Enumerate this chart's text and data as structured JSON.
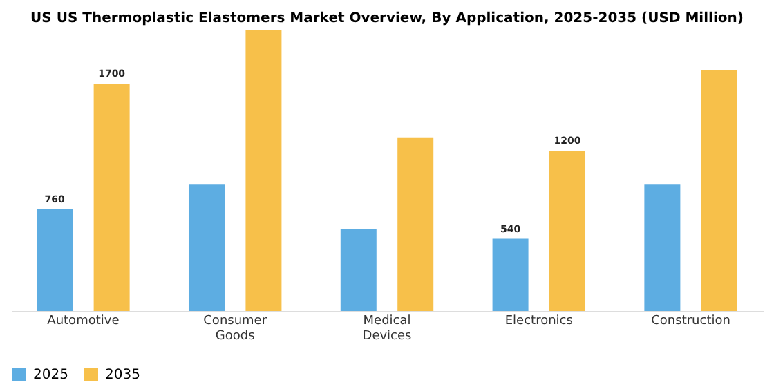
{
  "chart_data": {
    "type": "bar",
    "title": "US US Thermoplastic Elastomers Market Overview, By Application, 2025-2035 (USD Million)",
    "categories": [
      "Automotive",
      "Consumer Goods",
      "Medical Devices",
      "Electronics",
      "Construction"
    ],
    "series": [
      {
        "name": "2025",
        "color": "#5dade2",
        "values": [
          760,
          950,
          610,
          540,
          950
        ],
        "value_labels": [
          "760",
          null,
          null,
          "540",
          null
        ]
      },
      {
        "name": "2035",
        "color": "#f7c04a",
        "values": [
          1700,
          2100,
          1300,
          1200,
          1800
        ],
        "value_labels": [
          "1700",
          null,
          null,
          "1200",
          null
        ]
      }
    ],
    "legend": "bottom",
    "grid": false
  }
}
